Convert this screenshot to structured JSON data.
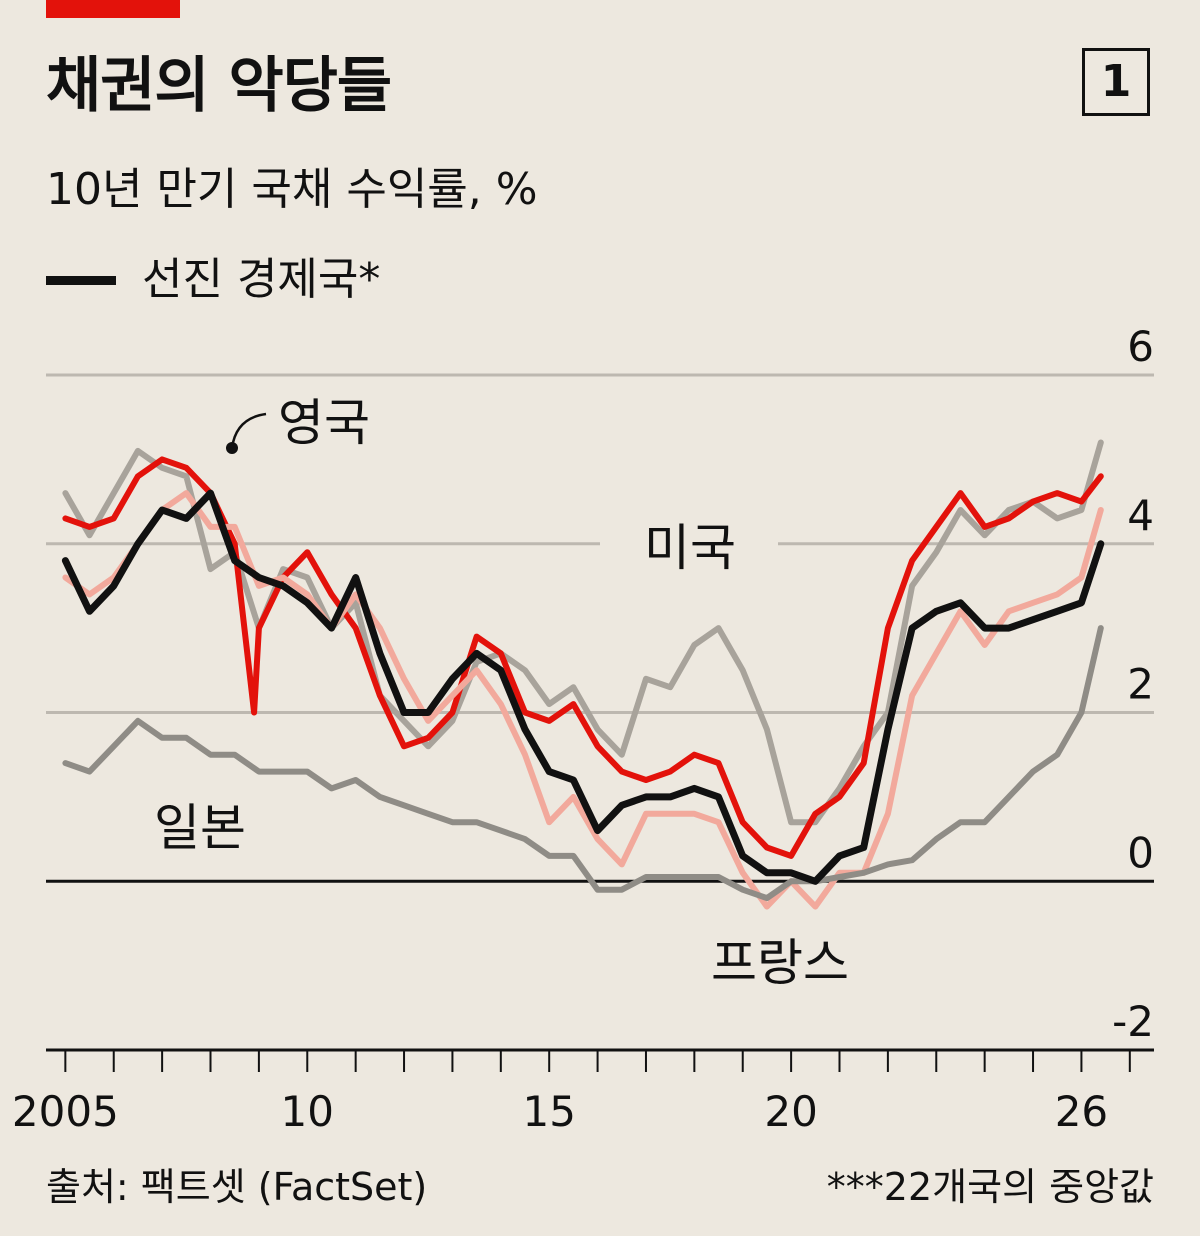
{
  "header": {
    "title": "채권의 악당들",
    "subtitle": "10년 만기 국채 수익률, %",
    "legend_label": "선진 경제국*",
    "chart_number": "1"
  },
  "footer": {
    "source": "출처: 팩트셋 (FactSet)",
    "footnote": "***22개국의 중앙값"
  },
  "colors": {
    "background": "#ede8df",
    "uk": "#e3120b",
    "us": "#a8a39b",
    "france": "#f2a99c",
    "japan": "#8f8c86",
    "advanced": "#111111"
  },
  "chart_data": {
    "type": "line",
    "ylim": [
      -2,
      6
    ],
    "yticks": [
      {
        "value": 6,
        "label": "6"
      },
      {
        "value": 4,
        "label": "4"
      },
      {
        "value": 2,
        "label": "2"
      },
      {
        "value": 0,
        "label": "0"
      },
      {
        "value": -2,
        "label": "-2"
      }
    ],
    "xlim": [
      2004.6,
      2027.5
    ],
    "xticks": [
      {
        "value": 2005,
        "label": "2005"
      },
      {
        "value": 2010,
        "label": "10"
      },
      {
        "value": 2015,
        "label": "15"
      },
      {
        "value": 2020,
        "label": "20"
      },
      {
        "value": 2026,
        "label": "26"
      }
    ],
    "series_annotations": [
      {
        "series": "uk",
        "label": "영국"
      },
      {
        "series": "us",
        "label": "미국"
      },
      {
        "series": "japan",
        "label": "일본"
      },
      {
        "series": "france",
        "label": "프랑스"
      }
    ],
    "series": [
      {
        "key": "us",
        "x": [
          2005.0,
          2005.5,
          2006.0,
          2006.5,
          2007.0,
          2007.5,
          2008.0,
          2008.5,
          2009.0,
          2009.5,
          2010.0,
          2010.5,
          2011.0,
          2011.5,
          2012.0,
          2012.5,
          2013.0,
          2013.5,
          2014.0,
          2014.5,
          2015.0,
          2015.5,
          2016.0,
          2016.5,
          2017.0,
          2017.5,
          2018.0,
          2018.5,
          2019.0,
          2019.5,
          2020.0,
          2020.5,
          2021.0,
          2021.5,
          2022.0,
          2022.5,
          2023.0,
          2023.5,
          2024.0,
          2024.5,
          2025.0,
          2025.5,
          2026.0,
          2026.4
        ],
        "values": [
          4.6,
          4.1,
          4.6,
          5.1,
          4.9,
          4.8,
          3.7,
          3.9,
          3.0,
          3.7,
          3.6,
          3.0,
          3.3,
          2.2,
          1.9,
          1.6,
          1.9,
          2.6,
          2.7,
          2.5,
          2.1,
          2.3,
          1.8,
          1.5,
          2.4,
          2.3,
          2.8,
          3.0,
          2.5,
          1.8,
          0.7,
          0.7,
          1.1,
          1.6,
          2.0,
          3.5,
          3.9,
          4.4,
          4.1,
          4.4,
          4.5,
          4.3,
          4.4,
          5.2
        ]
      },
      {
        "key": "uk",
        "x": [
          2005.0,
          2005.5,
          2006.0,
          2006.5,
          2007.0,
          2007.5,
          2008.0,
          2008.5,
          2008.9,
          2009.0,
          2009.5,
          2010.0,
          2010.5,
          2011.0,
          2011.5,
          2012.0,
          2012.5,
          2013.0,
          2013.5,
          2014.0,
          2014.5,
          2015.0,
          2015.5,
          2016.0,
          2016.5,
          2017.0,
          2017.5,
          2018.0,
          2018.5,
          2019.0,
          2019.5,
          2020.0,
          2020.5,
          2021.0,
          2021.5,
          2022.0,
          2022.5,
          2023.0,
          2023.5,
          2024.0,
          2024.5,
          2025.0,
          2025.5,
          2026.0,
          2026.4
        ],
        "values": [
          4.3,
          4.2,
          4.3,
          4.8,
          5.0,
          4.9,
          4.6,
          4.0,
          2.0,
          3.0,
          3.6,
          3.9,
          3.4,
          3.0,
          2.2,
          1.6,
          1.7,
          2.0,
          2.9,
          2.7,
          2.0,
          1.9,
          2.1,
          1.6,
          1.3,
          1.2,
          1.3,
          1.5,
          1.4,
          0.7,
          0.4,
          0.3,
          0.8,
          1.0,
          1.4,
          3.0,
          3.8,
          4.2,
          4.6,
          4.2,
          4.3,
          4.5,
          4.6,
          4.5,
          4.8
        ]
      },
      {
        "key": "france",
        "x": [
          2005.0,
          2005.5,
          2006.0,
          2006.5,
          2007.0,
          2007.5,
          2008.0,
          2008.5,
          2009.0,
          2009.5,
          2010.0,
          2010.5,
          2011.0,
          2011.5,
          2012.0,
          2012.5,
          2013.0,
          2013.5,
          2014.0,
          2014.5,
          2015.0,
          2015.5,
          2016.0,
          2016.5,
          2017.0,
          2017.5,
          2018.0,
          2018.5,
          2019.0,
          2019.5,
          2020.0,
          2020.5,
          2021.0,
          2021.5,
          2022.0,
          2022.5,
          2023.0,
          2023.5,
          2024.0,
          2024.5,
          2025.0,
          2025.5,
          2026.0,
          2026.4
        ],
        "values": [
          3.6,
          3.4,
          3.6,
          4.0,
          4.4,
          4.6,
          4.2,
          4.2,
          3.5,
          3.6,
          3.4,
          3.0,
          3.4,
          3.0,
          2.4,
          1.9,
          2.2,
          2.5,
          2.1,
          1.5,
          0.7,
          1.0,
          0.5,
          0.2,
          0.8,
          0.8,
          0.8,
          0.7,
          0.1,
          -0.3,
          0.0,
          -0.3,
          0.1,
          0.1,
          0.8,
          2.2,
          2.7,
          3.2,
          2.8,
          3.2,
          3.3,
          3.4,
          3.6,
          4.4
        ]
      },
      {
        "key": "japan",
        "x": [
          2005.0,
          2005.5,
          2006.0,
          2006.5,
          2007.0,
          2007.5,
          2008.0,
          2008.5,
          2009.0,
          2009.5,
          2010.0,
          2010.5,
          2011.0,
          2011.5,
          2012.0,
          2012.5,
          2013.0,
          2013.5,
          2014.0,
          2014.5,
          2015.0,
          2015.5,
          2016.0,
          2016.5,
          2017.0,
          2017.5,
          2018.0,
          2018.5,
          2019.0,
          2019.5,
          2020.0,
          2020.5,
          2021.0,
          2021.5,
          2022.0,
          2022.5,
          2023.0,
          2023.5,
          2024.0,
          2024.5,
          2025.0,
          2025.5,
          2026.0,
          2026.4
        ],
        "values": [
          1.4,
          1.3,
          1.6,
          1.9,
          1.7,
          1.7,
          1.5,
          1.5,
          1.3,
          1.3,
          1.3,
          1.1,
          1.2,
          1.0,
          0.9,
          0.8,
          0.7,
          0.7,
          0.6,
          0.5,
          0.3,
          0.3,
          -0.1,
          -0.1,
          0.05,
          0.05,
          0.05,
          0.05,
          -0.1,
          -0.2,
          0.0,
          0.0,
          0.05,
          0.1,
          0.2,
          0.25,
          0.5,
          0.7,
          0.7,
          1.0,
          1.3,
          1.5,
          2.0,
          3.0
        ]
      },
      {
        "key": "advanced",
        "x": [
          2005.0,
          2005.5,
          2006.0,
          2006.5,
          2007.0,
          2007.5,
          2008.0,
          2008.5,
          2009.0,
          2009.5,
          2010.0,
          2010.5,
          2011.0,
          2011.5,
          2012.0,
          2012.5,
          2013.0,
          2013.5,
          2014.0,
          2014.5,
          2015.0,
          2015.5,
          2016.0,
          2016.5,
          2017.0,
          2017.5,
          2018.0,
          2018.5,
          2019.0,
          2019.5,
          2020.0,
          2020.5,
          2021.0,
          2021.5,
          2022.0,
          2022.5,
          2023.0,
          2023.5,
          2024.0,
          2024.5,
          2025.0,
          2025.5,
          2026.0,
          2026.4
        ],
        "values": [
          3.8,
          3.2,
          3.5,
          4.0,
          4.4,
          4.3,
          4.6,
          3.8,
          3.6,
          3.5,
          3.3,
          3.0,
          3.6,
          2.7,
          2.0,
          2.0,
          2.4,
          2.7,
          2.5,
          1.8,
          1.3,
          1.2,
          0.6,
          0.9,
          1.0,
          1.0,
          1.1,
          1.0,
          0.3,
          0.1,
          0.1,
          0.0,
          0.3,
          0.4,
          1.8,
          3.0,
          3.2,
          3.3,
          3.0,
          3.0,
          3.1,
          3.2,
          3.3,
          4.0
        ]
      }
    ]
  }
}
